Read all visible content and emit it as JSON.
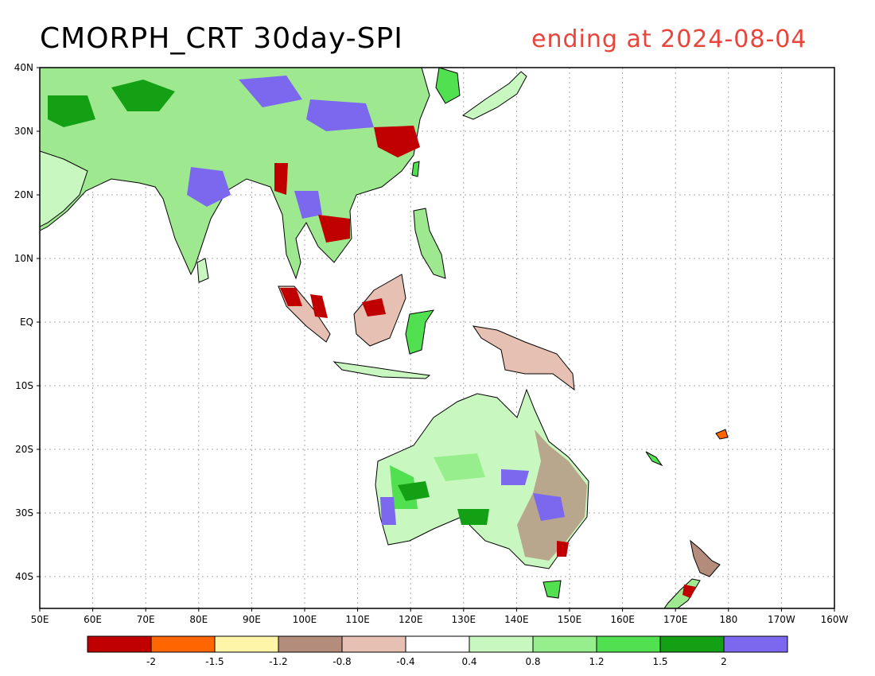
{
  "title": "CMORPH_CRT 30day-SPI",
  "subtitle": "ending at 2024-08-04",
  "map": {
    "lon_labels": [
      "50E",
      "60E",
      "70E",
      "80E",
      "90E",
      "100E",
      "110E",
      "120E",
      "130E",
      "140E",
      "150E",
      "160E",
      "170E",
      "180",
      "170W",
      "160W"
    ],
    "lat_labels": [
      "40N",
      "30N",
      "20N",
      "10N",
      "EQ",
      "10S",
      "20S",
      "30S",
      "40S"
    ]
  },
  "legend": {
    "colors": [
      "#c00000",
      "#ff6600",
      "#fff5a8",
      "#b48c7c",
      "#e6c0b2",
      "#ffffff",
      "#c8f8c0",
      "#96ee8c",
      "#50e050",
      "#14a014",
      "#7b68ee"
    ],
    "labels": [
      "-2",
      "-1.5",
      "-1.2",
      "-0.8",
      "-0.4",
      "0.4",
      "0.8",
      "1.2",
      "1.5",
      "2"
    ]
  },
  "colors": {
    "land_outline": "#000000",
    "grid": "#aaaaaa",
    "subtitle": "#e8453c"
  }
}
